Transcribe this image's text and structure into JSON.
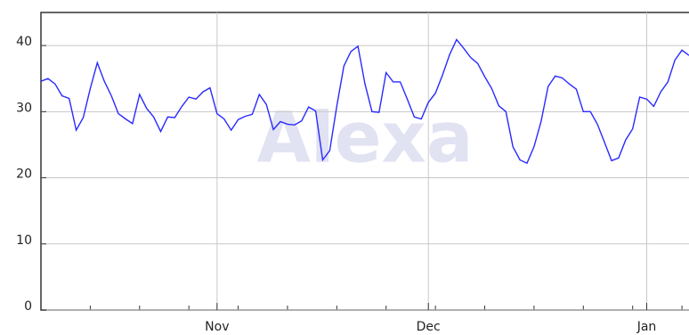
{
  "chart_data": {
    "type": "line",
    "watermark": "Alexa",
    "categories": [
      null,
      null,
      null,
      null,
      null,
      null,
      null,
      null,
      null,
      null,
      null,
      null,
      null,
      null,
      null,
      null,
      null,
      null,
      null,
      null,
      null,
      null,
      null,
      null,
      null,
      "Nov",
      null,
      null,
      null,
      null,
      null,
      null,
      null,
      null,
      null,
      null,
      null,
      null,
      null,
      null,
      null,
      null,
      null,
      null,
      null,
      null,
      null,
      null,
      null,
      null,
      null,
      null,
      null,
      null,
      null,
      "Dec",
      null,
      null,
      null,
      null,
      null,
      null,
      null,
      null,
      null,
      null,
      null,
      null,
      null,
      null,
      null,
      null,
      null,
      null,
      null,
      null,
      null,
      null,
      null,
      null,
      null,
      null,
      null,
      null,
      null,
      null,
      "Jan",
      null,
      null,
      null,
      null,
      null,
      null
    ],
    "series": [
      {
        "color": "#2a2aff",
        "values": [
          34.6,
          35.0,
          34.2,
          32.4,
          32.0,
          27.2,
          29.1,
          33.5,
          37.4,
          34.6,
          32.4,
          29.7,
          28.9,
          28.2,
          32.6,
          30.5,
          29.2,
          27.0,
          29.2,
          29.1,
          30.8,
          32.2,
          31.9,
          33.0,
          33.6,
          29.7,
          28.9,
          27.2,
          28.8,
          29.3,
          29.6,
          32.6,
          31.1,
          27.3,
          28.5,
          28.1,
          28.0,
          28.6,
          30.7,
          30.1,
          22.7,
          24.1,
          30.8,
          36.9,
          39.1,
          39.9,
          34.2,
          30.0,
          29.9,
          35.9,
          34.5,
          34.5,
          31.9,
          29.2,
          28.9,
          31.4,
          32.8,
          35.5,
          38.6,
          40.9,
          39.6,
          38.2,
          37.3,
          35.3,
          33.5,
          30.9,
          30.0,
          24.7,
          22.7,
          22.2,
          24.7,
          28.5,
          33.8,
          35.4,
          35.1,
          34.2,
          33.4,
          30.0,
          30.0,
          28.1,
          25.4,
          22.6,
          23.0,
          25.7,
          27.4,
          32.2,
          31.9,
          30.8,
          33.0,
          34.5,
          37.8,
          39.3,
          38.5
        ]
      }
    ],
    "ylim": [
      0,
      45
    ],
    "yticks": [
      0,
      10,
      20,
      30,
      40
    ],
    "grid": true
  }
}
